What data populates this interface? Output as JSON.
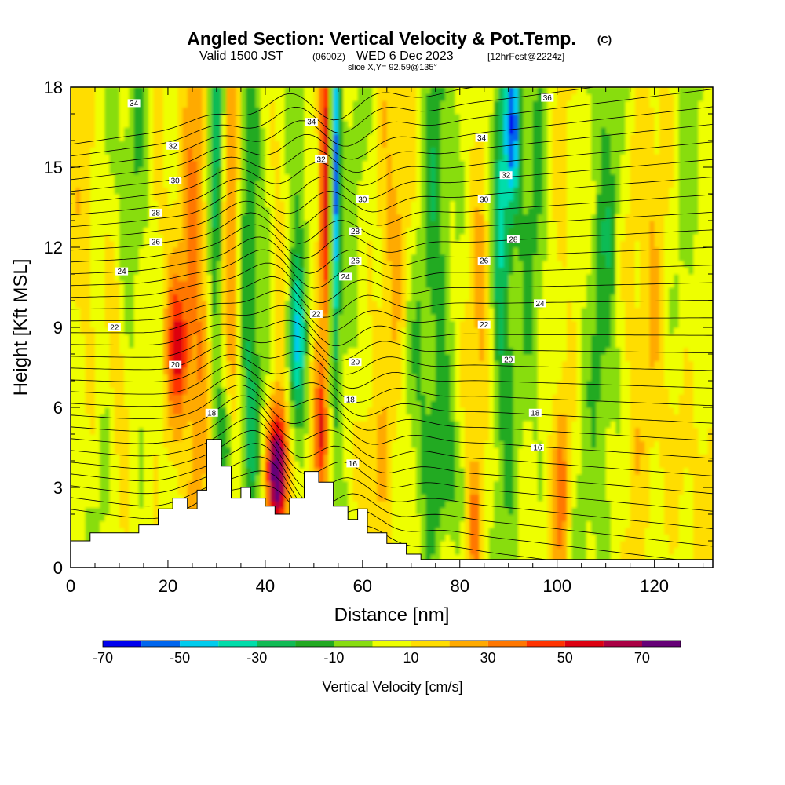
{
  "title": {
    "main": "Angled Section: Vertical Velocity & Pot.Temp.",
    "main_suffix": "(C)",
    "valid_prefix": "Valid 1500 JST",
    "valid_z": "(0600Z)",
    "valid_date": "WED 6 Dec 2023",
    "valid_fcst": "[12hrFcst@2224z]",
    "slice": "slice X,Y= 92,59@135°"
  },
  "chart_data": {
    "type": "heatmap",
    "xlabel": "Distance [nm]",
    "ylabel": "Height [Kft MSL]",
    "xlim": [
      0,
      132
    ],
    "ylim": [
      0,
      18
    ],
    "x_ticks": [
      0,
      20,
      40,
      60,
      80,
      100,
      120
    ],
    "y_ticks": [
      0,
      3,
      6,
      9,
      12,
      15,
      18
    ],
    "colorbar": {
      "title": "Vertical Velocity [cm/s]",
      "levels": [
        -80,
        -70,
        -60,
        -50,
        -40,
        -30,
        -20,
        -10,
        0,
        10,
        20,
        30,
        40,
        50,
        60,
        70,
        80
      ],
      "labels": [
        "-70",
        "-50",
        "-30",
        "-10",
        "10",
        "30",
        "50",
        "70"
      ],
      "label_values": [
        -70,
        -50,
        -30,
        -10,
        10,
        30,
        50,
        70
      ],
      "colors": [
        "#0000ee",
        "#0066ee",
        "#00ccee",
        "#00ddaa",
        "#11bb55",
        "#22aa22",
        "#88dd11",
        "#eeff00",
        "#ffdd00",
        "#ffaa00",
        "#ff7700",
        "#ff3300",
        "#dd0011",
        "#aa0044",
        "#660077"
      ]
    },
    "isentrope_labels": [
      {
        "value": "34",
        "x": 13,
        "y": 17.4
      },
      {
        "value": "32",
        "x": 21,
        "y": 15.8
      },
      {
        "value": "30",
        "x": 21.5,
        "y": 14.5
      },
      {
        "value": "28",
        "x": 17.5,
        "y": 13.3
      },
      {
        "value": "26",
        "x": 17.5,
        "y": 12.2
      },
      {
        "value": "24",
        "x": 10.5,
        "y": 11.1
      },
      {
        "value": "22",
        "x": 9,
        "y": 9.0
      },
      {
        "value": "20",
        "x": 21.5,
        "y": 7.6
      },
      {
        "value": "18",
        "x": 29,
        "y": 5.8
      },
      {
        "value": "34",
        "x": 49.5,
        "y": 16.7
      },
      {
        "value": "32",
        "x": 51.5,
        "y": 15.3
      },
      {
        "value": "30",
        "x": 60,
        "y": 13.8
      },
      {
        "value": "28",
        "x": 58.5,
        "y": 12.6
      },
      {
        "value": "26",
        "x": 58.5,
        "y": 11.5
      },
      {
        "value": "24",
        "x": 56.5,
        "y": 10.9
      },
      {
        "value": "22",
        "x": 50.5,
        "y": 9.5
      },
      {
        "value": "20",
        "x": 58.5,
        "y": 7.7
      },
      {
        "value": "18",
        "x": 57.5,
        "y": 6.3
      },
      {
        "value": "16",
        "x": 58,
        "y": 3.9
      },
      {
        "value": "36",
        "x": 98,
        "y": 17.6
      },
      {
        "value": "34",
        "x": 84.5,
        "y": 16.1
      },
      {
        "value": "32",
        "x": 89.5,
        "y": 14.7
      },
      {
        "value": "30",
        "x": 85,
        "y": 13.8
      },
      {
        "value": "28",
        "x": 91,
        "y": 12.3
      },
      {
        "value": "26",
        "x": 85,
        "y": 11.5
      },
      {
        "value": "24",
        "x": 96.5,
        "y": 9.9
      },
      {
        "value": "22",
        "x": 85,
        "y": 9.1
      },
      {
        "value": "20",
        "x": 90,
        "y": 7.8
      },
      {
        "value": "18",
        "x": 95.5,
        "y": 5.8
      },
      {
        "value": "16",
        "x": 96,
        "y": 4.5
      }
    ]
  }
}
